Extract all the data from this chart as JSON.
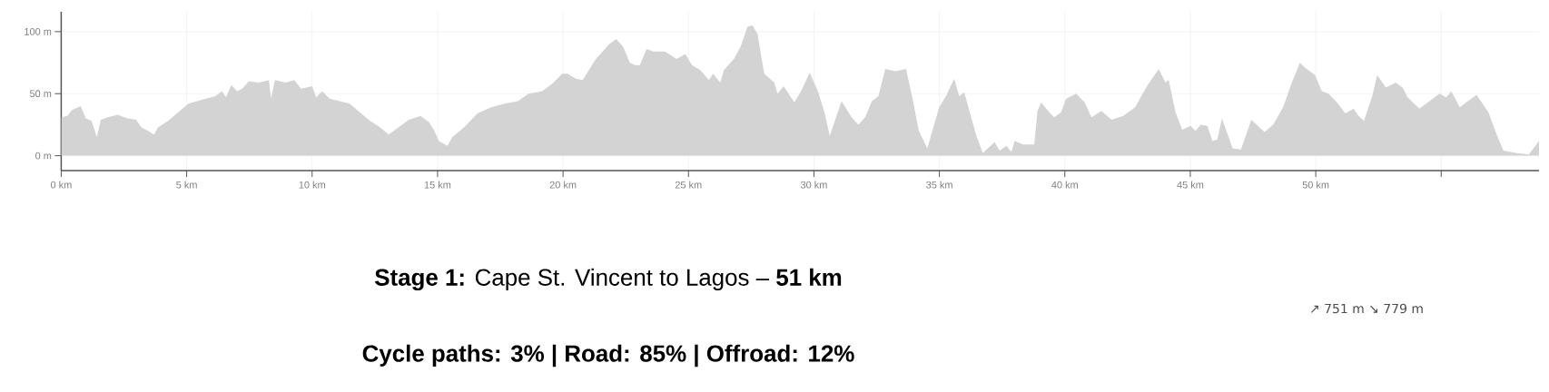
{
  "chart_data": {
    "type": "area",
    "title": "**Stage 1:** Cape St. Vincent to Lagos – **51 km**",
    "subtitle": "Cycle paths: 3% | Road: 85% | Offroad: 12%",
    "annotations": [
      "↗ 751 m ↘ 779 m"
    ],
    "xlim": [
      0,
      58.9
    ],
    "ylim": [
      -12,
      116
    ],
    "xticks": [
      {
        "value": 0,
        "label": "0 km"
      },
      {
        "value": 5,
        "label": "5 km"
      },
      {
        "value": 10,
        "label": "10 km"
      },
      {
        "value": 15,
        "label": "15 km"
      },
      {
        "value": 20,
        "label": "20 km"
      },
      {
        "value": 25,
        "label": "25 km"
      },
      {
        "value": 30,
        "label": "30 km"
      },
      {
        "value": 35,
        "label": "35 km"
      },
      {
        "value": 40,
        "label": "40 km"
      },
      {
        "value": 45,
        "label": "45 km"
      },
      {
        "value": 50,
        "label": "50 km"
      },
      {
        "value": 55,
        "label": null
      }
    ],
    "yticks": [
      {
        "value": 0,
        "label": "0 m"
      },
      {
        "value": 50,
        "label": "50 m"
      },
      {
        "value": 100,
        "label": "100 m"
      }
    ],
    "grid": true,
    "marker": "none",
    "series": [
      {
        "color": "#d3d3d3",
        "x": [
          0,
          0.24,
          0.44,
          0.78,
          0.98,
          1.21,
          1.42,
          1.58,
          1.85,
          2.25,
          2.65,
          2.99,
          3.19,
          3.46,
          3.7,
          3.86,
          4.26,
          4.66,
          5.07,
          5.6,
          6.14,
          6.41,
          6.57,
          6.78,
          7.01,
          7.21,
          7.48,
          7.88,
          8.28,
          8.36,
          8.52,
          8.95,
          9.29,
          9.56,
          10.0,
          10.16,
          10.4,
          10.7,
          11.1,
          11.5,
          11.9,
          12.31,
          12.71,
          13.05,
          13.45,
          13.85,
          14.32,
          14.66,
          14.85,
          15.05,
          15.39,
          15.59,
          16.06,
          16.59,
          17.13,
          17.67,
          18.2,
          18.63,
          19.17,
          19.57,
          19.97,
          20.18,
          20.51,
          20.78,
          21.31,
          21.85,
          22.12,
          22.39,
          22.66,
          22.86,
          23.06,
          23.33,
          23.59,
          24.06,
          24.53,
          24.87,
          25.14,
          25.47,
          25.6,
          25.81,
          25.98,
          26.27,
          26.41,
          26.81,
          27.08,
          27.35,
          27.55,
          27.75,
          28.02,
          28.42,
          28.55,
          28.79,
          29.22,
          29.49,
          29.83,
          30.16,
          30.43,
          30.63,
          31.1,
          31.5,
          31.77,
          32.04,
          32.31,
          32.57,
          32.84,
          33.24,
          33.67,
          33.92,
          34.18,
          34.52,
          34.99,
          35.26,
          35.59,
          35.79,
          35.99,
          36.46,
          36.73,
          37.2,
          37.4,
          37.67,
          37.87,
          38.0,
          38.34,
          38.78,
          38.91,
          39.05,
          39.38,
          39.58,
          39.85,
          40.05,
          40.45,
          40.79,
          41.06,
          41.46,
          41.86,
          42.33,
          42.8,
          43.27,
          43.74,
          44.01,
          44.14,
          44.41,
          44.68,
          45.01,
          45.21,
          45.41,
          45.68,
          45.88,
          46.08,
          46.26,
          46.49,
          46.69,
          47.02,
          47.43,
          47.96,
          48.3,
          48.7,
          49.03,
          49.37,
          49.57,
          49.97,
          50.24,
          50.51,
          50.84,
          51.18,
          51.51,
          51.71,
          51.92,
          52.25,
          52.45,
          52.79,
          53.19,
          53.46,
          53.66,
          54.13,
          54.53,
          54.93,
          55.2,
          55.4,
          55.74,
          56.0,
          56.41,
          56.88,
          57.21,
          57.48,
          58.02,
          58.49,
          58.9
        ],
        "values": [
          31,
          32,
          37,
          40,
          30,
          28,
          15,
          29,
          31,
          33,
          30,
          29,
          23,
          20,
          17,
          23,
          28,
          35,
          42,
          45,
          48,
          52,
          47,
          57,
          52,
          54,
          60,
          59,
          61,
          46,
          61,
          59,
          61,
          54,
          56,
          47,
          52,
          46,
          44,
          42,
          35,
          28,
          23,
          17,
          23,
          29,
          32,
          27,
          21,
          12,
          8,
          15,
          23,
          34,
          39,
          42,
          44,
          50,
          52,
          58,
          66,
          66,
          62,
          61,
          78,
          90,
          94,
          88,
          75,
          73,
          73,
          86,
          84,
          84,
          78,
          82,
          73,
          69,
          66,
          61,
          66,
          59,
          69,
          78,
          88,
          104,
          105,
          98,
          66,
          59,
          50,
          56,
          43,
          52,
          67,
          52,
          34,
          16,
          44,
          31,
          25,
          31,
          44,
          48,
          70,
          68,
          70,
          47,
          20,
          6,
          39,
          48,
          62,
          48,
          51,
          17,
          2,
          11,
          4,
          8,
          3,
          12,
          9,
          9,
          36,
          43,
          35,
          31,
          35,
          46,
          50,
          43,
          31,
          36,
          29,
          32,
          39,
          56,
          70,
          59,
          61,
          35,
          21,
          24,
          20,
          25,
          24,
          12,
          13,
          30,
          17,
          6,
          5,
          29,
          19,
          25,
          39,
          58,
          75,
          71,
          65,
          52,
          50,
          43,
          34,
          38,
          32,
          28,
          48,
          65,
          55,
          59,
          55,
          47,
          38,
          44,
          50,
          47,
          52,
          39,
          43,
          49,
          35,
          17,
          4,
          2,
          1,
          12
        ]
      }
    ]
  }
}
